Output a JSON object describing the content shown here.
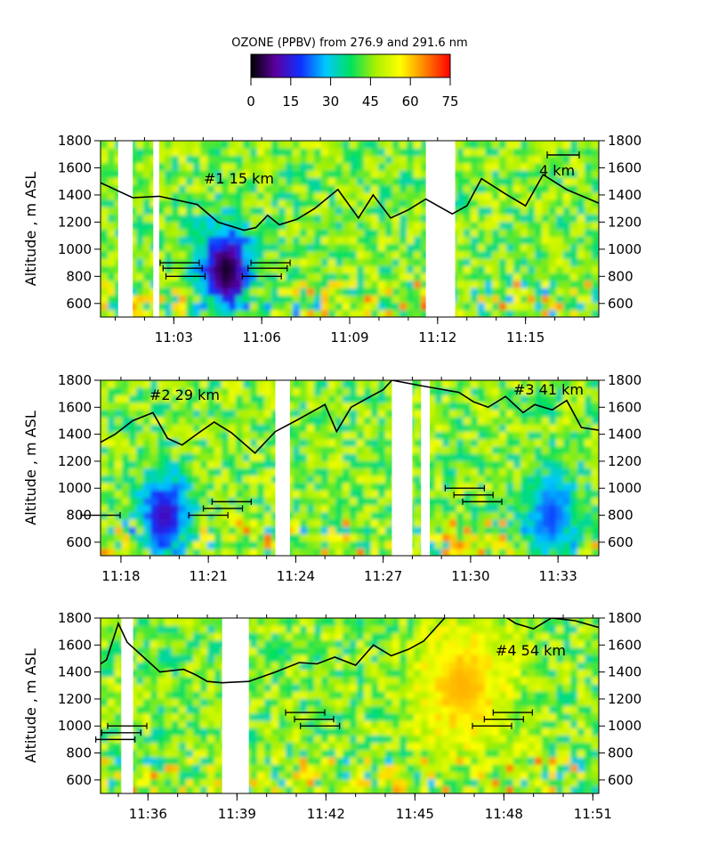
{
  "colorbar": {
    "title": "OZONE (PPBV) from 276.9 and 291.6 nm",
    "ticks": [
      "0",
      "15",
      "30",
      "45",
      "60",
      "75"
    ],
    "range": [
      0,
      75
    ],
    "stops": [
      "#000000",
      "#5a00a0",
      "#1030ff",
      "#00c8ff",
      "#00e060",
      "#a8f000",
      "#ffff00",
      "#ff8000",
      "#ff0000"
    ]
  },
  "chart_data": [
    {
      "type": "heatmap",
      "title": "",
      "ylabel": "Altitude , m ASL",
      "ylim": [
        500,
        1800
      ],
      "yticks": [
        "600",
        "800",
        "1000",
        "1200",
        "1400",
        "1600",
        "1800"
      ],
      "x_range_min": [
        0.5,
        17.5
      ],
      "xticks": [
        "11:03",
        "11:06",
        "11:09",
        "11:12",
        "11:15"
      ],
      "annotations": [
        "#1 15 km",
        "4 km"
      ],
      "gaps_min": [
        [
          1.1,
          1.6
        ],
        [
          2.3,
          2.5
        ],
        [
          11.6,
          12.6
        ]
      ],
      "low_ozone_regions": [
        {
          "t": 4.8,
          "alt": 850,
          "value": 2
        }
      ],
      "boundary_layer_height": {
        "t": [
          0.5,
          1.6,
          2.5,
          3.8,
          4.5,
          5.4,
          5.8,
          6.2,
          6.6,
          7.2,
          7.8,
          8.6,
          9.3,
          9.8,
          10.4,
          11.0,
          11.6,
          12.5,
          13.0,
          13.5,
          14.3,
          15.0,
          15.6,
          16.4,
          17.5
        ],
        "alt": [
          1490,
          1380,
          1390,
          1330,
          1200,
          1140,
          1160,
          1250,
          1180,
          1220,
          1300,
          1440,
          1230,
          1400,
          1230,
          1290,
          1370,
          1260,
          1320,
          1520,
          1410,
          1320,
          1550,
          1440,
          1340
        ]
      },
      "error_bars_left": [
        {
          "center": 3.2,
          "alt": 900
        },
        {
          "center": 3.3,
          "alt": 860
        },
        {
          "center": 3.4,
          "alt": 800
        }
      ],
      "error_bars_right": [
        {
          "center": 6.3,
          "alt": 900
        },
        {
          "center": 6.2,
          "alt": 860
        },
        {
          "center": 6.0,
          "alt": 800
        }
      ]
    },
    {
      "type": "heatmap",
      "title": "",
      "ylabel": "Altitude , m ASL",
      "ylim": [
        500,
        1800
      ],
      "yticks": [
        "600",
        "800",
        "1000",
        "1200",
        "1400",
        "1600",
        "1800"
      ],
      "x_range_min": [
        17.3,
        34.4
      ],
      "xticks": [
        "11:18",
        "11:21",
        "11:24",
        "11:27",
        "11:30",
        "11:33"
      ],
      "annotations": [
        "#2 29 km",
        "#3 41 km"
      ],
      "gaps_min": [
        [
          23.3,
          23.8
        ],
        [
          27.3,
          28.0
        ],
        [
          28.3,
          28.6
        ]
      ],
      "low_ozone_regions": [
        {
          "t": 19.5,
          "alt": 800,
          "value": 12
        },
        {
          "t": 32.8,
          "alt": 800,
          "value": 20
        }
      ],
      "boundary_layer_height": {
        "t": [
          17.3,
          17.8,
          18.4,
          19.1,
          19.6,
          20.1,
          20.6,
          21.2,
          21.8,
          22.6,
          23.3,
          24.0,
          24.5,
          25.0,
          25.4,
          25.9,
          26.4,
          27.0,
          27.3,
          28.3,
          29.6,
          30.1,
          30.6,
          31.2,
          31.8,
          32.2,
          32.8,
          33.3,
          33.8,
          34.4
        ],
        "alt": [
          1340,
          1400,
          1500,
          1560,
          1370,
          1320,
          1400,
          1490,
          1410,
          1260,
          1420,
          1500,
          1560,
          1620,
          1420,
          1600,
          1660,
          1730,
          1800,
          1760,
          1710,
          1640,
          1600,
          1680,
          1560,
          1620,
          1580,
          1650,
          1450,
          1430
        ]
      },
      "error_bars_left": [
        {
          "center": 17.3,
          "alt": 800
        }
      ],
      "error_bars_right": [
        {
          "center": 21.8,
          "alt": 900
        },
        {
          "center": 21.5,
          "alt": 850
        },
        {
          "center": 21.0,
          "alt": 800
        },
        {
          "center": 29.8,
          "alt": 1000
        },
        {
          "center": 30.1,
          "alt": 950
        },
        {
          "center": 30.4,
          "alt": 900
        }
      ]
    },
    {
      "type": "heatmap",
      "title": "",
      "ylabel": "Altitude , m ASL",
      "ylim": [
        500,
        1800
      ],
      "yticks": [
        "600",
        "800",
        "1000",
        "1200",
        "1400",
        "1600",
        "1800"
      ],
      "x_range_min": [
        34.4,
        51.2
      ],
      "xticks": [
        "11:36",
        "11:39",
        "11:42",
        "11:45",
        "11:48",
        "11:51"
      ],
      "annotations": [
        "#4 54 km"
      ],
      "gaps_min": [
        [
          35.1,
          35.5
        ],
        [
          38.5,
          39.4
        ]
      ],
      "low_ozone_regions": [],
      "high_ozone_regions": [
        {
          "t": 46.6,
          "alt": 1300,
          "value": 62
        }
      ],
      "boundary_layer_height": {
        "t": [
          34.4,
          34.6,
          35.0,
          35.3,
          35.8,
          36.4,
          37.2,
          37.6,
          38.0,
          38.5,
          39.4,
          40.3,
          41.1,
          41.7,
          42.3,
          43.0,
          43.6,
          44.2,
          44.8,
          45.3,
          46.0,
          46.8,
          47.4,
          47.9,
          48.4,
          49.0,
          49.6,
          50.4,
          51.2
        ],
        "alt": [
          1460,
          1490,
          1760,
          1620,
          1520,
          1400,
          1420,
          1380,
          1330,
          1320,
          1330,
          1400,
          1470,
          1460,
          1510,
          1450,
          1600,
          1520,
          1570,
          1630,
          1800,
          1820,
          1820,
          1830,
          1760,
          1720,
          1800,
          1780,
          1730
        ]
      },
      "error_bars_left": [
        {
          "center": 35.3,
          "alt": 1000
        },
        {
          "center": 35.1,
          "alt": 950
        },
        {
          "center": 34.9,
          "alt": 900
        }
      ],
      "error_bars_right": [
        {
          "center": 41.3,
          "alt": 1100
        },
        {
          "center": 41.6,
          "alt": 1050
        },
        {
          "center": 41.8,
          "alt": 1000
        },
        {
          "center": 48.3,
          "alt": 1100
        },
        {
          "center": 48.0,
          "alt": 1050
        },
        {
          "center": 47.6,
          "alt": 1000
        }
      ]
    }
  ]
}
